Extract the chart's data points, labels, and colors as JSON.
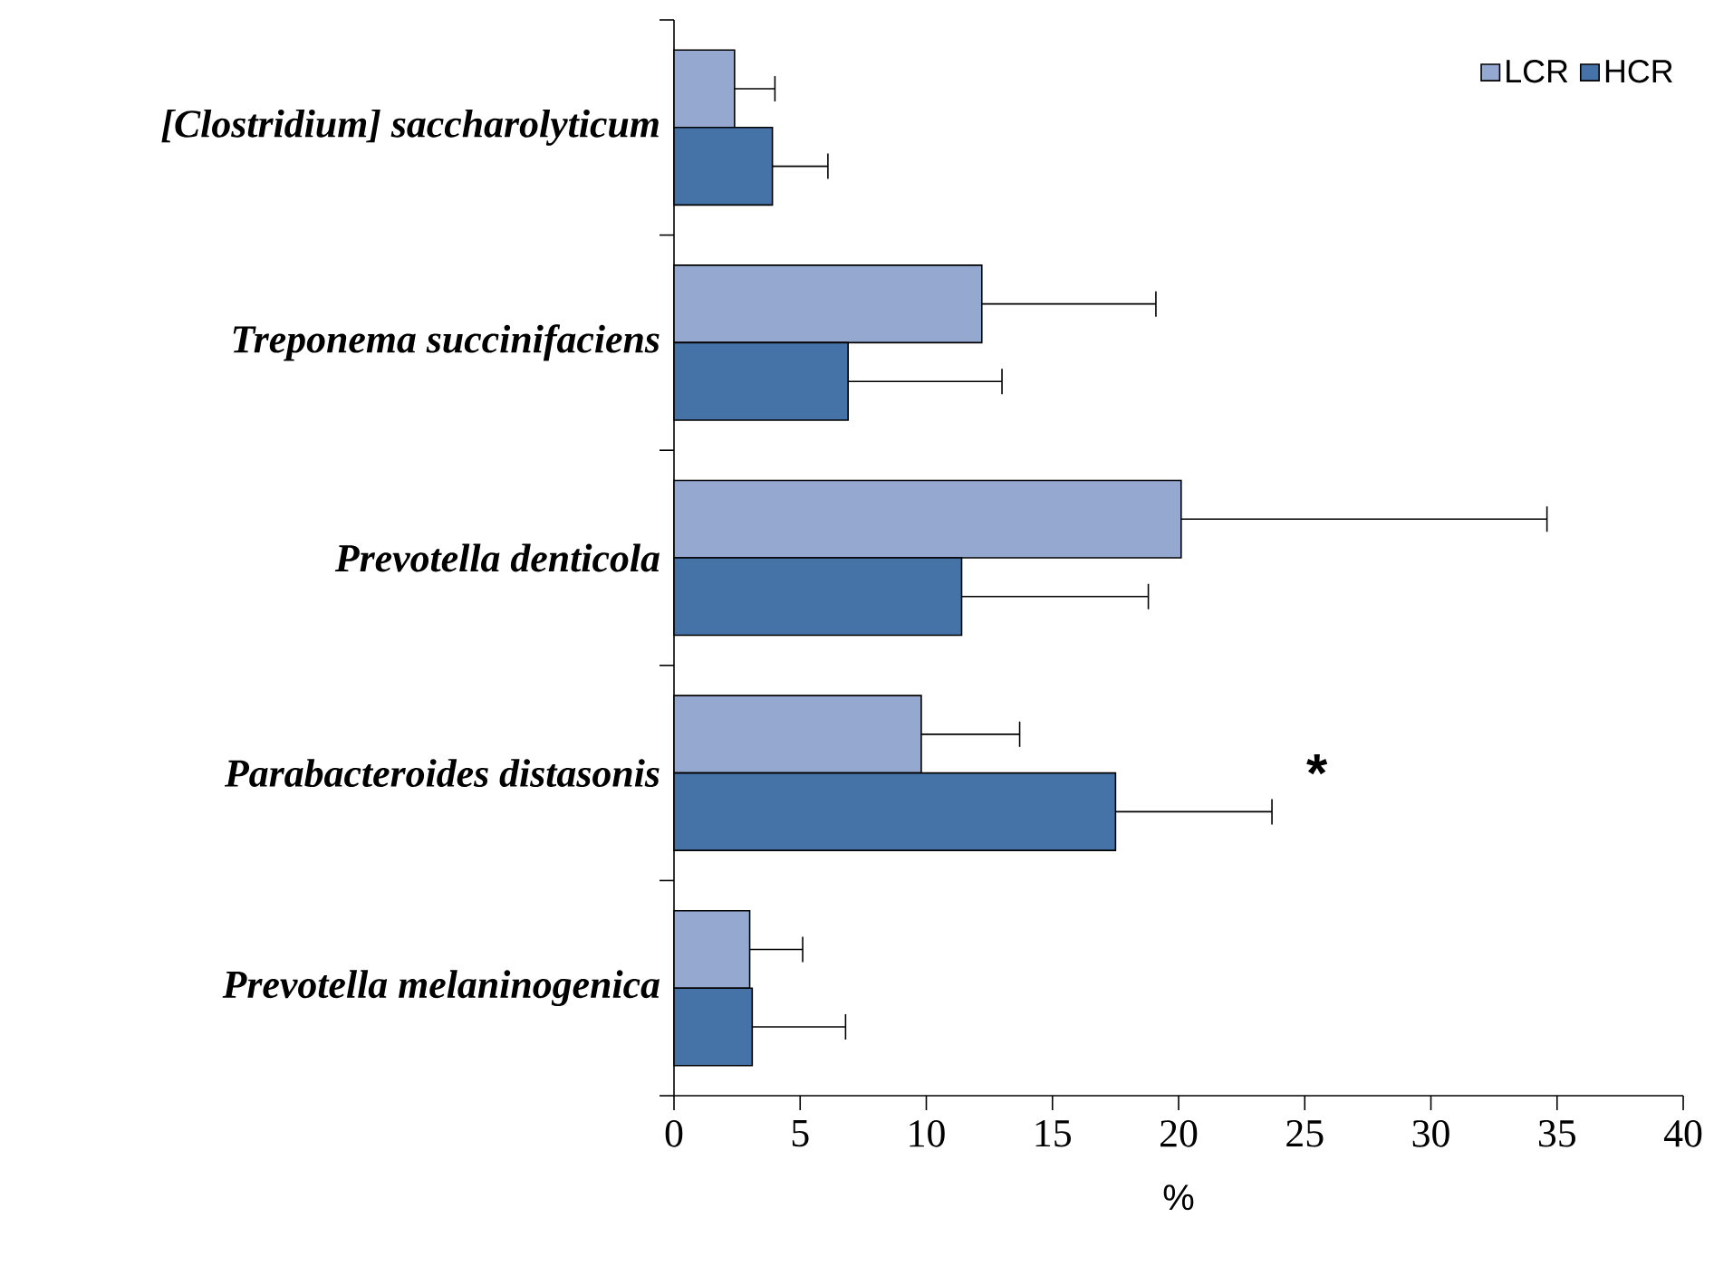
{
  "chart_data": {
    "type": "bar",
    "orientation": "horizontal",
    "xlabel": "%",
    "categories": [
      "[Clostridium] saccharolyticum",
      "Treponema succinifaciens",
      "Prevotella denticola",
      "Parabacteroides distasonis",
      "Prevotella melaninogenica"
    ],
    "series": [
      {
        "name": "LCR",
        "color": "#95a9d0",
        "values": [
          2.4,
          12.2,
          20.1,
          9.8,
          3.0
        ],
        "errors": [
          1.6,
          6.9,
          14.5,
          3.9,
          2.1
        ]
      },
      {
        "name": "HCR",
        "color": "#4573a7",
        "values": [
          3.9,
          6.9,
          11.4,
          17.5,
          3.1
        ],
        "errors": [
          2.2,
          6.1,
          7.4,
          6.2,
          3.7
        ]
      }
    ],
    "xlim": [
      0,
      40
    ],
    "xticks": [
      0,
      5,
      10,
      15,
      20,
      25,
      30,
      35,
      40
    ],
    "legend": "top right",
    "grid": false,
    "annotations": [
      "*"
    ]
  }
}
